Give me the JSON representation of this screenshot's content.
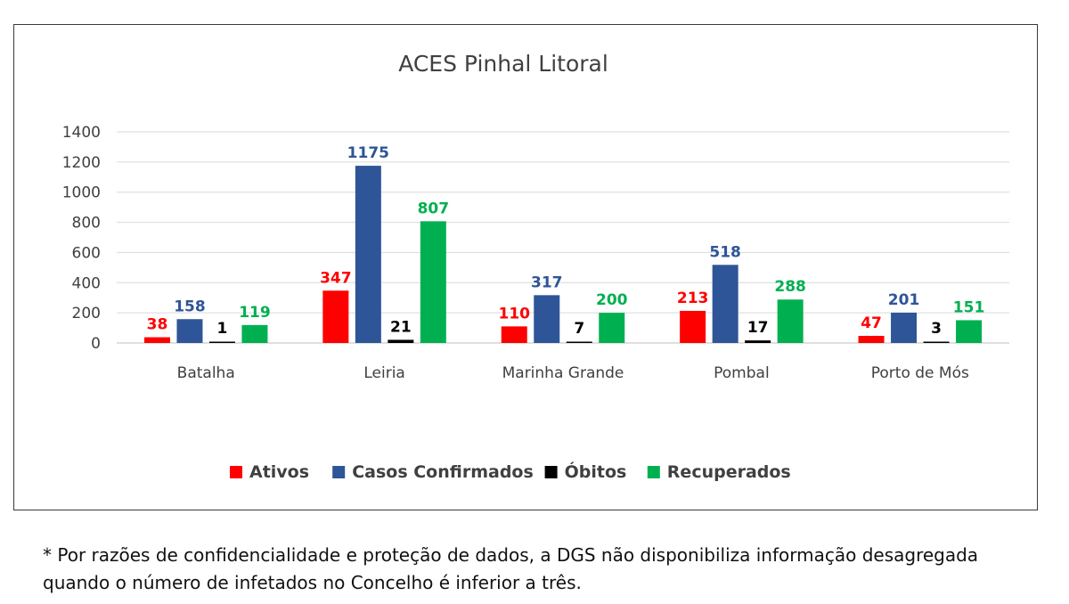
{
  "chart_data": {
    "type": "bar",
    "title": "ACES Pinhal Litoral",
    "categories": [
      "Batalha",
      "Leiria",
      "Marinha Grande",
      "Pombal",
      "Porto de Mós"
    ],
    "series": [
      {
        "name": "Ativos",
        "color": "#ff0000",
        "values": [
          38,
          347,
          110,
          213,
          47
        ],
        "labels": [
          "38",
          "347",
          "110",
          "213",
          "47"
        ]
      },
      {
        "name": "Casos Confirmados",
        "color": "#2e5597",
        "values": [
          158,
          1175,
          317,
          518,
          201
        ],
        "labels": [
          "158",
          "1175",
          "317",
          "518",
          "201"
        ]
      },
      {
        "name": "Óbitos",
        "color": "#000000",
        "values": [
          1,
          21,
          7,
          17,
          3
        ],
        "labels": [
          "1",
          "21",
          "7",
          "17",
          "3"
        ]
      },
      {
        "name": "Recuperados",
        "color": "#00b050",
        "values": [
          119,
          807,
          200,
          288,
          151
        ],
        "labels": [
          "119",
          "807",
          "200",
          "288",
          "151"
        ]
      }
    ],
    "yticks": [
      "0",
      "200",
      "400",
      "600",
      "800",
      "1000",
      "1200",
      "1400"
    ],
    "ylim": [
      0,
      1400
    ],
    "grid": true,
    "legend": "bottom"
  },
  "footnote": {
    "line1": "* Por razões de confidencialidade e proteção de dados, a DGS não disponibiliza informação desagregada",
    "line2": "quando o número de infetados no Concelho é inferior a três."
  }
}
